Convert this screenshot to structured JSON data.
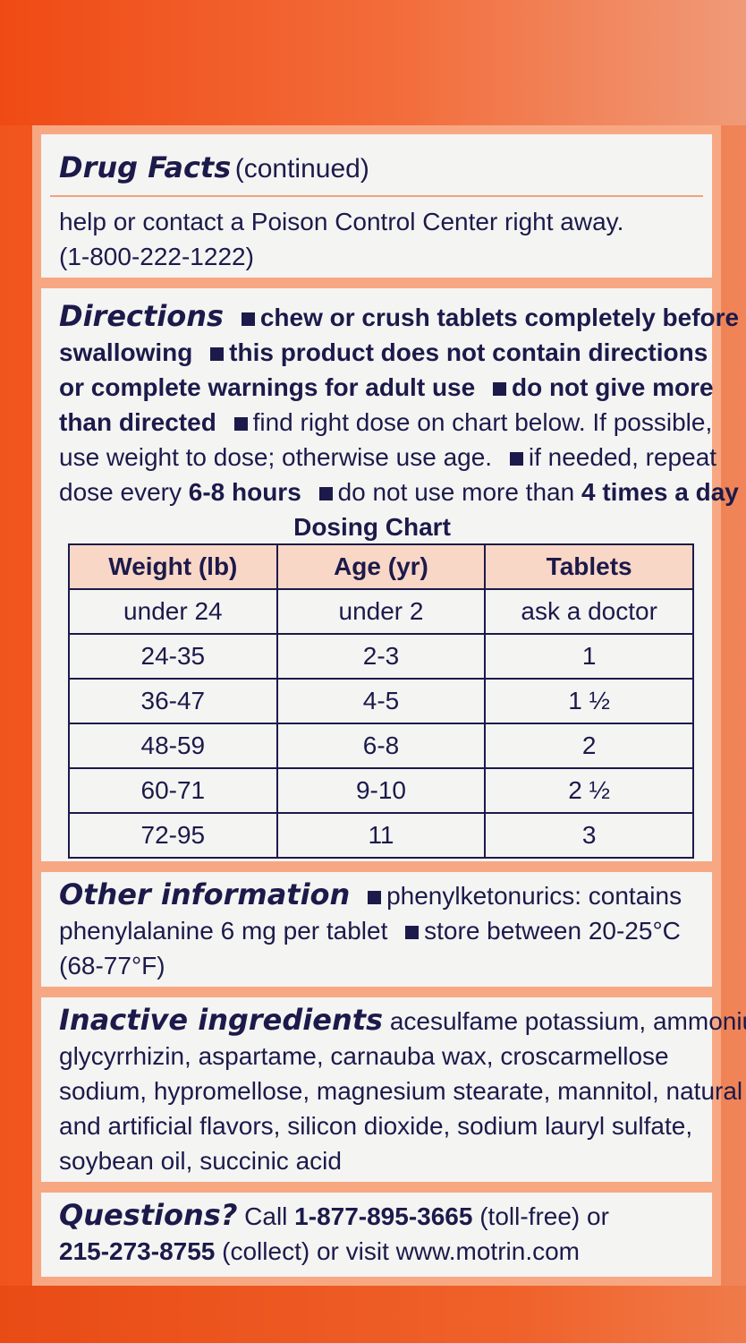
{
  "package": {
    "top_print_lines": [
      "",
      "",
      "",
      "",
      "",
      "",
      "",
      "",
      ""
    ],
    "colors": {
      "box_orange": "#f0551d",
      "panel_peach": "#f7a883",
      "text_navy": "#1c1a4a",
      "table_header": "#f9d7c6",
      "section_bg": "#f4f4f3"
    }
  },
  "drug_facts": {
    "heading": "Drug Facts",
    "heading_suffix": "(continued)",
    "line1": "help or contact a Poison Control Center right away.",
    "line2": "(1-800-222-1222)"
  },
  "directions": {
    "heading": "Directions",
    "l1": "chew or crush tablets completely before",
    "l2a": "swallowing",
    "l2b": "this product does not contain directions",
    "l3a": "or complete warnings for adult use",
    "l3b": "do not give more",
    "l4a": "than directed",
    "l4b": "find right dose on chart below. If possible,",
    "l5a": "use weight to dose; otherwise use age.",
    "l5b": "if needed, repeat",
    "l6a": "dose every ",
    "l6b": "6-8 hours",
    "l6c": "do not use more than ",
    "l6d": "4 times a day",
    "chart_title": "Dosing Chart",
    "table": {
      "headers": [
        "Weight (lb)",
        "Age (yr)",
        "Tablets"
      ],
      "rows": [
        [
          "under 24",
          "under 2",
          "ask a doctor"
        ],
        [
          "24-35",
          "2-3",
          "1"
        ],
        [
          "36-47",
          "4-5",
          "1 ½"
        ],
        [
          "48-59",
          "6-8",
          "2"
        ],
        [
          "60-71",
          "9-10",
          "2 ½"
        ],
        [
          "72-95",
          "11",
          "3"
        ]
      ]
    }
  },
  "other_info": {
    "heading": "Other information",
    "l1": "phenylketonurics: contains",
    "l2a": "phenylalanine 6 mg per tablet",
    "l2b": "store between 20-25°C",
    "l3": "(68-77°F)"
  },
  "inactive": {
    "heading": "Inactive ingredients",
    "l1": "acesulfame potassium, ammonium",
    "l2": "glycyrrhizin, aspartame, carnauba wax, croscarmellose",
    "l3": "sodium, hypromellose, magnesium stearate, mannitol, natural",
    "l4": "and artificial flavors, silicon dioxide, sodium lauryl sulfate,",
    "l5": "soybean oil, succinic acid"
  },
  "questions": {
    "heading": "Questions?",
    "l1a": " Call ",
    "l1b": "1-877-895-3665",
    "l1c": " (toll-free) or",
    "l2a": "215-273-8755",
    "l2b": " (collect) or visit www.motrin.com"
  }
}
